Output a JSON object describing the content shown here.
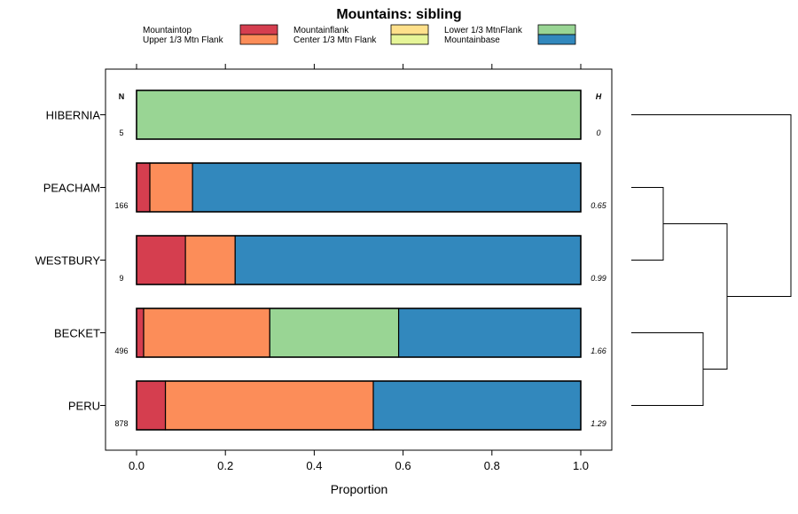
{
  "chart_data": {
    "type": "bar",
    "orientation": "horizontal",
    "stacked": true,
    "title": "Mountains: sibling",
    "xlabel": "Proportion",
    "xlim": [
      -0.07,
      1.07
    ],
    "xticks": [
      "0.0",
      "0.2",
      "0.4",
      "0.6",
      "0.8",
      "1.0"
    ],
    "xtick_values": [
      0,
      0.2,
      0.4,
      0.6,
      0.8,
      1.0
    ],
    "n_header": "N",
    "h_header": "H",
    "legend": {
      "placement": "top",
      "entries": [
        {
          "name": "Mountaintop",
          "color": "#d53e4f"
        },
        {
          "name": "Upper 1/3 Mtn Flank",
          "color": "#fc8d59"
        },
        {
          "name": "Mountainflank",
          "color": "#fee08b"
        },
        {
          "name": "Center 1/3 Mtn Flank",
          "color": "#e6f598"
        },
        {
          "name": "Lower 1/3 MtnFlank",
          "color": "#99d594"
        },
        {
          "name": "Mountainbase",
          "color": "#3288bd"
        }
      ]
    },
    "categories": [
      "HIBERNIA",
      "PEACHAM",
      "WESTBURY",
      "BECKET",
      "PERU"
    ],
    "n": [
      "5",
      "166",
      "9",
      "496",
      "878"
    ],
    "h": [
      "0",
      "0.65",
      "0.99",
      "1.66",
      "1.29"
    ],
    "series": [
      {
        "name": "Mountaintop",
        "color": "#d53e4f",
        "values": [
          0,
          0.03,
          0.11,
          0.016,
          0.065
        ]
      },
      {
        "name": "Upper 1/3 Mtn Flank",
        "color": "#fc8d59",
        "values": [
          0,
          0.096,
          0.112,
          0.284,
          0.468
        ]
      },
      {
        "name": "Mountainflank",
        "color": "#fee08b",
        "values": [
          0,
          0,
          0,
          0,
          0
        ]
      },
      {
        "name": "Center 1/3 Mtn Flank",
        "color": "#e6f598",
        "values": [
          0,
          0,
          0,
          0,
          0
        ]
      },
      {
        "name": "Lower 1/3 MtnFlank",
        "color": "#99d594",
        "values": [
          1.0,
          0,
          0,
          0.29,
          0
        ]
      },
      {
        "name": "Mountainbase",
        "color": "#3288bd",
        "values": [
          0,
          0.874,
          0.778,
          0.41,
          0.467
        ]
      }
    ],
    "dendrogram": {
      "placement": "right",
      "merges": [
        {
          "left": "PEACHAM",
          "right": "WESTBURY",
          "height": 0.2
        },
        {
          "left": "BECKET",
          "right": "PERU",
          "height": 0.45
        },
        {
          "left": "PEACHAM+WESTBURY",
          "right": "BECKET+PERU",
          "height": 0.6
        },
        {
          "left": "HIBERNIA",
          "right": "PEACHAM+WESTBURY+BECKET+PERU",
          "height": 1.0
        }
      ]
    }
  }
}
